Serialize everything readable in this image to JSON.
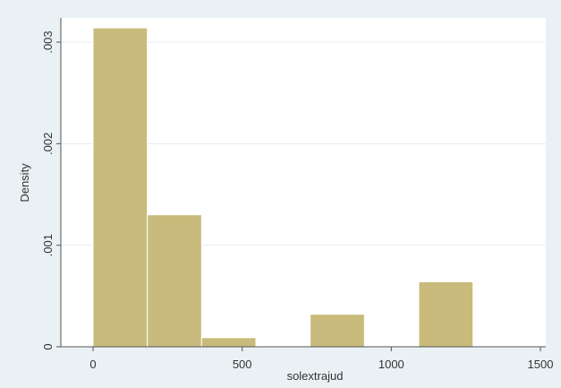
{
  "chart_data": {
    "type": "bar",
    "xlabel": "solextrajud",
    "ylabel": "Density",
    "xlim": [
      0,
      1500
    ],
    "ylim": [
      0,
      0.0032
    ],
    "xticks": [
      {
        "value": 0,
        "label": "0"
      },
      {
        "value": 500,
        "label": "500"
      },
      {
        "value": 1000,
        "label": "1000"
      },
      {
        "value": 1500,
        "label": "1500"
      }
    ],
    "yticks": [
      {
        "value": 0,
        "label": "0"
      },
      {
        "value": 0.001,
        "label": ".001"
      },
      {
        "value": 0.002,
        "label": ".002"
      },
      {
        "value": 0.003,
        "label": ".003"
      }
    ],
    "bins": [
      {
        "x0": 0,
        "x1": 182,
        "density": 0.00314
      },
      {
        "x0": 182,
        "x1": 364,
        "density": 0.0013
      },
      {
        "x0": 364,
        "x1": 546,
        "density": 9e-05
      },
      {
        "x0": 546,
        "x1": 728,
        "density": 0
      },
      {
        "x0": 728,
        "x1": 910,
        "density": 0.00032
      },
      {
        "x0": 910,
        "x1": 1092,
        "density": 0
      },
      {
        "x0": 1092,
        "x1": 1274,
        "density": 0.00064
      }
    ],
    "grid": true,
    "colors": {
      "bar": "#c8bb7b",
      "bar_edge": "#ffffff",
      "plot_bg": "#ffffff",
      "outer_bg": "#eaf1f4",
      "grid": "#e6ecef"
    }
  }
}
